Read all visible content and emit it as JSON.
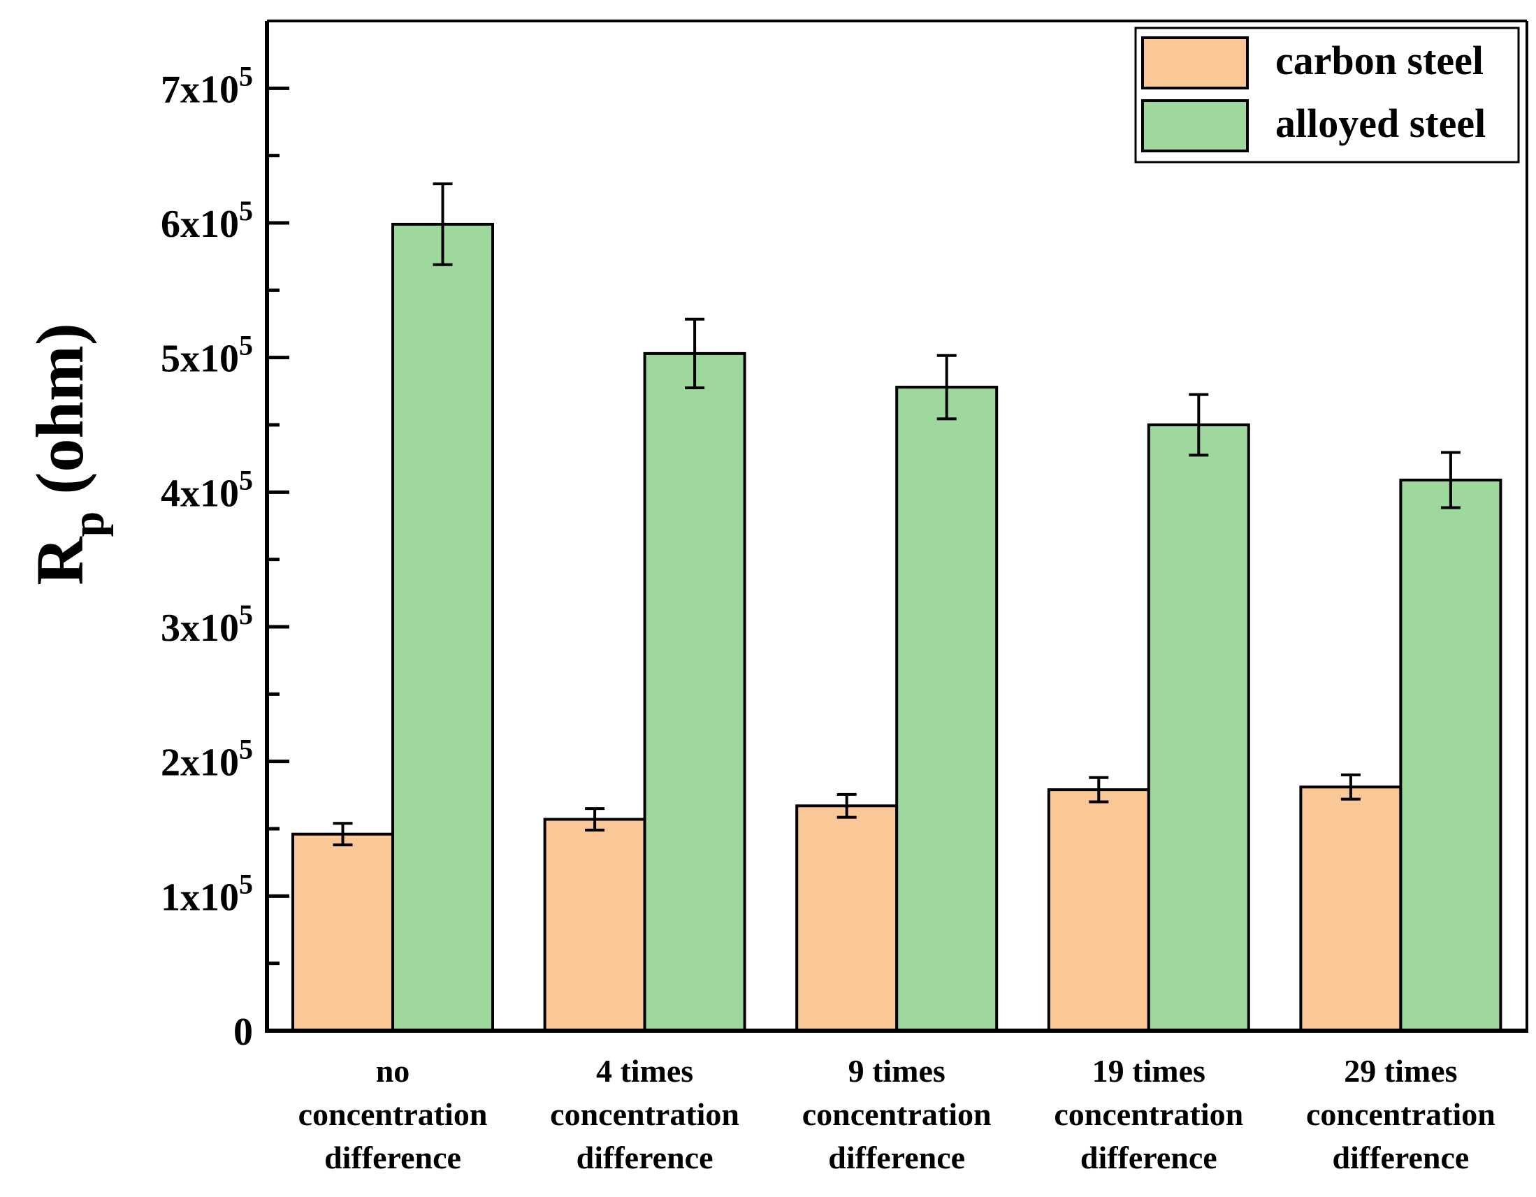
{
  "chart_data": {
    "type": "bar",
    "title": "",
    "xlabel": "",
    "ylabel": {
      "main": "R",
      "sub": "p",
      "rest": " (ohm)"
    },
    "ylim": [
      0,
      750000
    ],
    "yticks": [
      {
        "value": 0,
        "mantissa": "0",
        "exp": ""
      },
      {
        "value": 100000,
        "mantissa": "1x10",
        "exp": "5"
      },
      {
        "value": 200000,
        "mantissa": "2x10",
        "exp": "5"
      },
      {
        "value": 300000,
        "mantissa": "3x10",
        "exp": "5"
      },
      {
        "value": 400000,
        "mantissa": "4x10",
        "exp": "5"
      },
      {
        "value": 500000,
        "mantissa": "5x10",
        "exp": "5"
      },
      {
        "value": 600000,
        "mantissa": "6x10",
        "exp": "5"
      },
      {
        "value": 700000,
        "mantissa": "7x10",
        "exp": "5"
      }
    ],
    "categories": [
      [
        "no",
        "concentration",
        "difference"
      ],
      [
        "4 times",
        "concentration",
        "difference"
      ],
      [
        "9 times",
        "concentration",
        "difference"
      ],
      [
        "19 times",
        "concentration",
        "difference"
      ],
      [
        "29 times",
        "concentration",
        "difference"
      ]
    ],
    "series": [
      {
        "name": "carbon steel",
        "color": "#f9c896",
        "values": [
          146000,
          157000,
          167000,
          179000,
          181000
        ],
        "errors": [
          8000,
          8000,
          8500,
          9000,
          9000
        ]
      },
      {
        "name": "alloyed steel",
        "color": "#9ed89c",
        "values": [
          599000,
          503000,
          478000,
          450000,
          409000
        ],
        "errors": [
          30000,
          25500,
          23500,
          22500,
          20500
        ]
      }
    ],
    "legend_position": "top-right",
    "grid": false
  }
}
